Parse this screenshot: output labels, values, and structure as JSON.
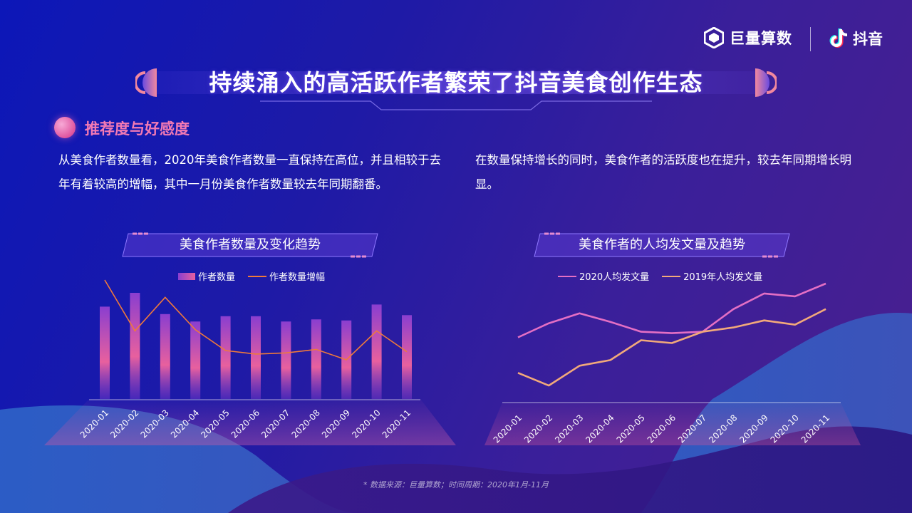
{
  "brand": {
    "juliang": "巨量算数",
    "douyin": "抖音"
  },
  "title": "持续涌入的高活跃作者繁荣了抖音美食创作生态",
  "section": {
    "heading": "推荐度与好感度"
  },
  "paragraphs": {
    "left": "从美食作者数量看，2020年美食作者数量一直保持在高位，并且相较于去年有着较高的增幅，其中一月份美食作者数量较去年同期翻番。",
    "right": "在数量保持增长的同时，美食作者的活跃度也在提升，较去年同期增长明显。"
  },
  "colors": {
    "bar_top": "#8a3ed0",
    "bar_bottom": "#e8609e",
    "growth_line": "#f07a3a",
    "series_2020": "#e46fc4",
    "series_2019": "#f2a97a",
    "accent_pink": "#f37ab4"
  },
  "chart_data": [
    {
      "type": "bar",
      "title": "美食作者数量及变化趋势",
      "categories": [
        "2020-01",
        "2020-02",
        "2020-03",
        "2020-04",
        "2020-05",
        "2020-06",
        "2020-07",
        "2020-08",
        "2020-09",
        "2020-10",
        "2020-11"
      ],
      "series": [
        {
          "name": "作者数量",
          "type": "bar",
          "values": [
            0.87,
            1.0,
            0.8,
            0.73,
            0.78,
            0.78,
            0.73,
            0.75,
            0.74,
            0.89,
            0.79
          ]
        },
        {
          "name": "作者数量增幅",
          "type": "line",
          "values": [
            1.0,
            0.56,
            0.85,
            0.57,
            0.39,
            0.36,
            0.37,
            0.4,
            0.31,
            0.56,
            0.38
          ]
        }
      ],
      "legend": "top-center",
      "grid": false,
      "ylim": [
        0,
        1
      ]
    },
    {
      "type": "line",
      "title": "美食作者的人均发文量及趋势",
      "categories": [
        "2020-01",
        "2020-02",
        "2020-03",
        "2020-04",
        "2020-05",
        "2020-06",
        "2020-07",
        "2020-08",
        "2020-09",
        "2020-10",
        "2020-11"
      ],
      "series": [
        {
          "name": "2020人均发文量",
          "values": [
            0.4,
            0.5,
            0.57,
            0.51,
            0.44,
            0.43,
            0.44,
            0.6,
            0.71,
            0.69,
            0.78
          ]
        },
        {
          "name": "2019年人均发文量",
          "values": [
            0.15,
            0.06,
            0.2,
            0.24,
            0.38,
            0.36,
            0.44,
            0.47,
            0.52,
            0.49,
            0.6
          ]
        }
      ],
      "legend": "top-center",
      "grid": false,
      "ylim": [
        -0.06,
        0.78
      ]
    }
  ],
  "footnote": "* 数据来源：巨量算数；时间周期：2020年1月-11月"
}
